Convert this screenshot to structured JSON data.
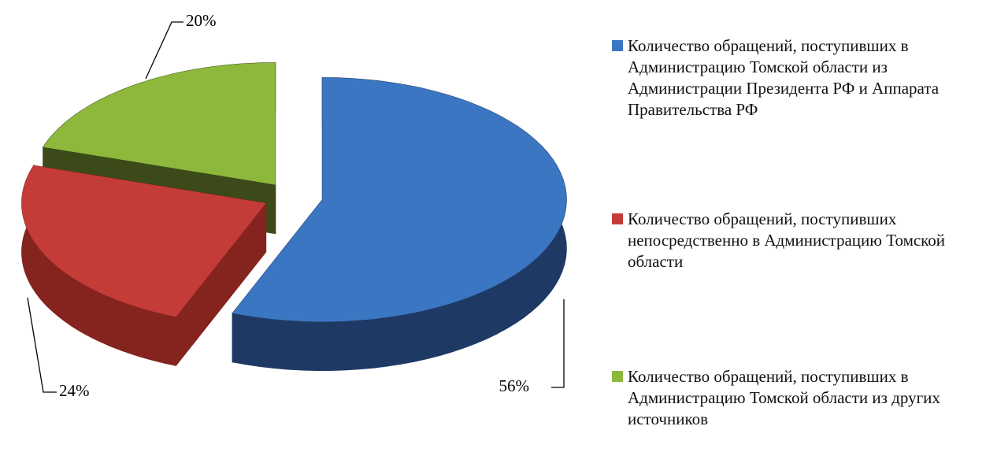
{
  "chart_data": {
    "type": "pie",
    "categories": [
      "Количество обращений, поступивших в Администрацию Томской области из Администрации Президента РФ и Аппарата Правительства РФ",
      "Количество обращений, поступивших непосредственно в Администрацию Томской области",
      "Количество обращений, поступивших в Администрацию Томской области из других источников"
    ],
    "values": [
      56,
      24,
      20
    ],
    "value_labels": [
      "56%",
      "24%",
      "20%"
    ],
    "colors": [
      "#3b76c2",
      "#c43c38",
      "#8db83c"
    ],
    "side_colors": [
      "#1e3a64",
      "#85231f",
      "#3b4a18"
    ]
  }
}
